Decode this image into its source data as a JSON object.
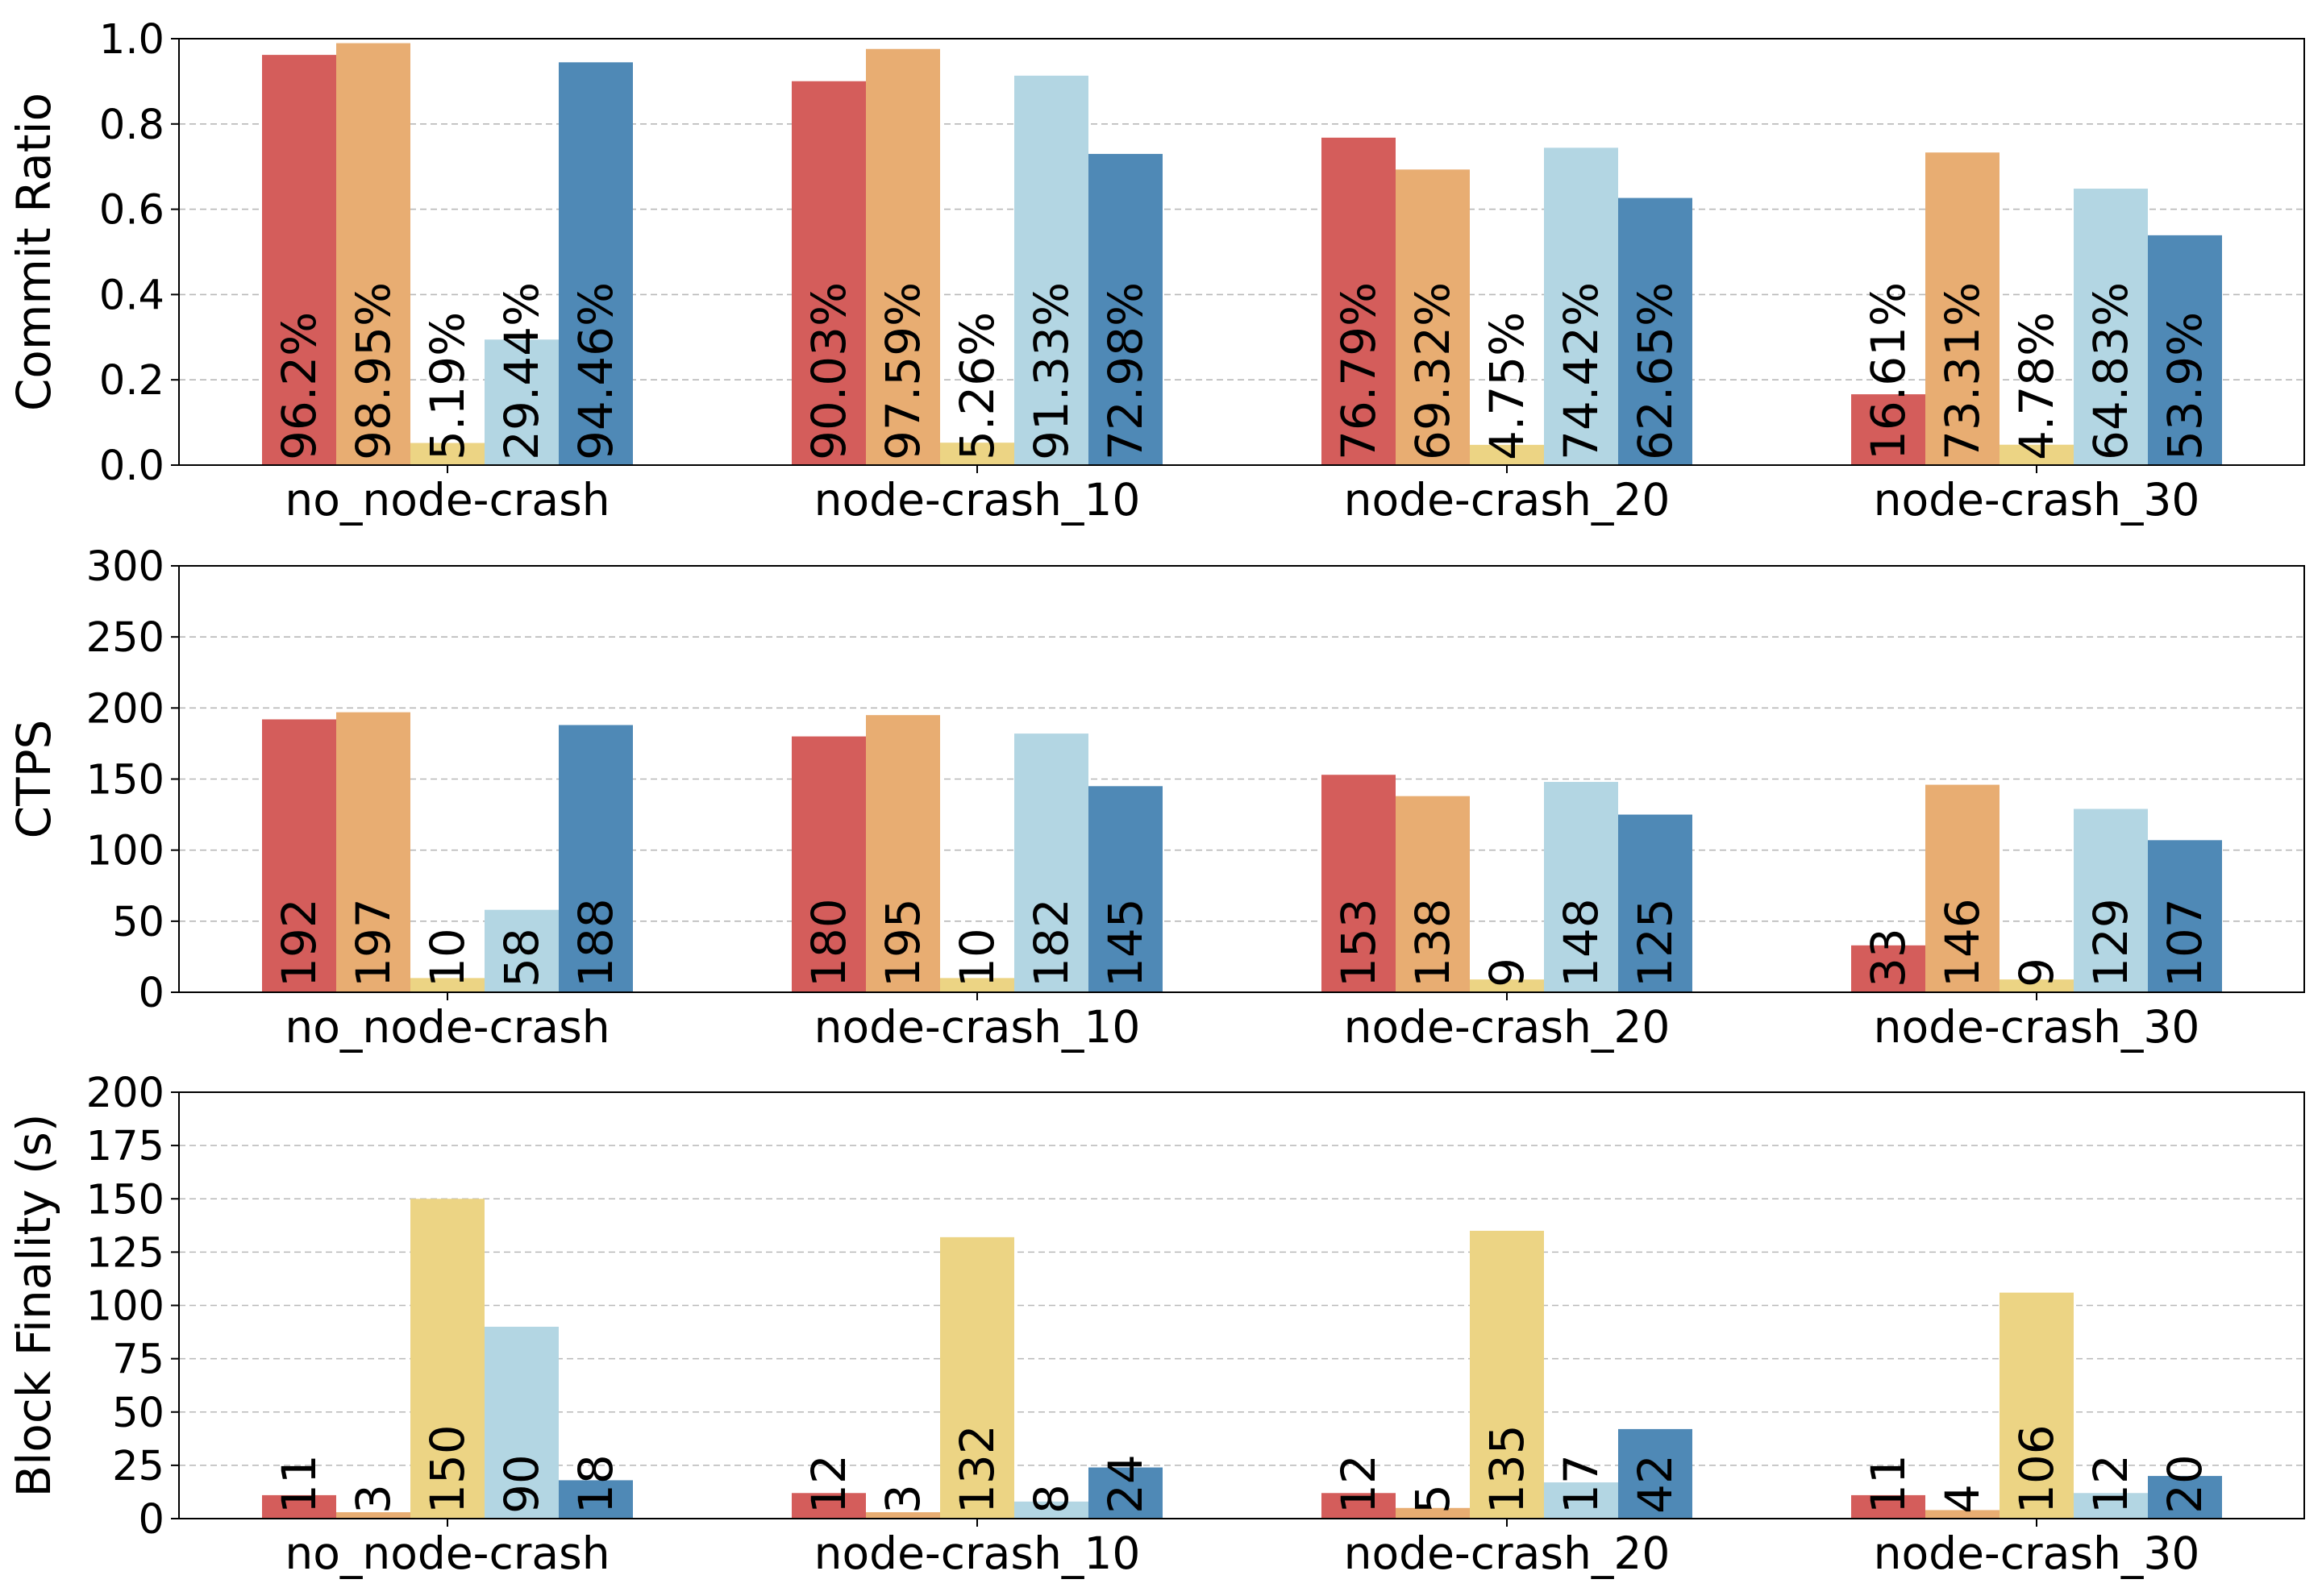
{
  "colors": [
    "#d45d5b",
    "#e8ad72",
    "#ecd484",
    "#b3d6e3",
    "#4f89b6"
  ],
  "chart_data": [
    {
      "type": "bar",
      "ylabel": "Commit Ratio",
      "ylim": [
        0,
        1.0
      ],
      "yticks": [
        0.0,
        0.2,
        0.4,
        0.6,
        0.8,
        1.0
      ],
      "ytick_labels": [
        "0.0",
        "0.2",
        "0.4",
        "0.6",
        "0.8",
        "1.0"
      ],
      "grid": true,
      "categories": [
        "no_node-crash",
        "node-crash_10",
        "node-crash_20",
        "node-crash_30"
      ],
      "series": [
        {
          "values": [
            0.962,
            0.9003,
            0.7679,
            0.1661
          ],
          "labels": [
            "96.2%",
            "90.03%",
            "76.79%",
            "16.61%"
          ]
        },
        {
          "values": [
            0.9895,
            0.9759,
            0.6932,
            0.7331
          ],
          "labels": [
            "98.95%",
            "97.59%",
            "69.32%",
            "73.31%"
          ]
        },
        {
          "values": [
            0.0519,
            0.0526,
            0.0475,
            0.0478
          ],
          "labels": [
            "5.19%",
            "5.26%",
            "4.75%",
            "4.78%"
          ]
        },
        {
          "values": [
            0.2944,
            0.9133,
            0.7442,
            0.6483
          ],
          "labels": [
            "29.44%",
            "91.33%",
            "74.42%",
            "64.83%"
          ]
        },
        {
          "values": [
            0.9446,
            0.7298,
            0.6265,
            0.539
          ],
          "labels": [
            "94.46%",
            "72.98%",
            "62.65%",
            "53.9%"
          ]
        }
      ]
    },
    {
      "type": "bar",
      "ylabel": "CTPS",
      "ylim": [
        0,
        300
      ],
      "yticks": [
        0,
        50,
        100,
        150,
        200,
        250,
        300
      ],
      "ytick_labels": [
        "0",
        "50",
        "100",
        "150",
        "200",
        "250",
        "300"
      ],
      "grid": true,
      "categories": [
        "no_node-crash",
        "node-crash_10",
        "node-crash_20",
        "node-crash_30"
      ],
      "series": [
        {
          "values": [
            192,
            180,
            153,
            33
          ],
          "labels": [
            "192",
            "180",
            "153",
            "33"
          ]
        },
        {
          "values": [
            197,
            195,
            138,
            146
          ],
          "labels": [
            "197",
            "195",
            "138",
            "146"
          ]
        },
        {
          "values": [
            10,
            10,
            9,
            9
          ],
          "labels": [
            "10",
            "10",
            "9",
            "9"
          ]
        },
        {
          "values": [
            58,
            182,
            148,
            129
          ],
          "labels": [
            "58",
            "182",
            "148",
            "129"
          ]
        },
        {
          "values": [
            188,
            145,
            125,
            107
          ],
          "labels": [
            "188",
            "145",
            "125",
            "107"
          ]
        }
      ]
    },
    {
      "type": "bar",
      "ylabel": "Block Finality (s)",
      "ylim": [
        0,
        200
      ],
      "yticks": [
        0,
        25,
        50,
        75,
        100,
        125,
        150,
        175,
        200
      ],
      "ytick_labels": [
        "0",
        "25",
        "50",
        "75",
        "100",
        "125",
        "150",
        "175",
        "200"
      ],
      "grid": true,
      "categories": [
        "no_node-crash",
        "node-crash_10",
        "node-crash_20",
        "node-crash_30"
      ],
      "series": [
        {
          "values": [
            11,
            12,
            12,
            11
          ],
          "labels": [
            "11",
            "12",
            "12",
            "11"
          ]
        },
        {
          "values": [
            3,
            3,
            5,
            4
          ],
          "labels": [
            "3",
            "3",
            "5",
            "4"
          ]
        },
        {
          "values": [
            150,
            132,
            135,
            106
          ],
          "labels": [
            "150",
            "132",
            "135",
            "106"
          ]
        },
        {
          "values": [
            90,
            8,
            17,
            12
          ],
          "labels": [
            "90",
            "8",
            "17",
            "12"
          ]
        },
        {
          "values": [
            18,
            24,
            42,
            20
          ],
          "labels": [
            "18",
            "24",
            "42",
            "20"
          ]
        }
      ]
    }
  ]
}
